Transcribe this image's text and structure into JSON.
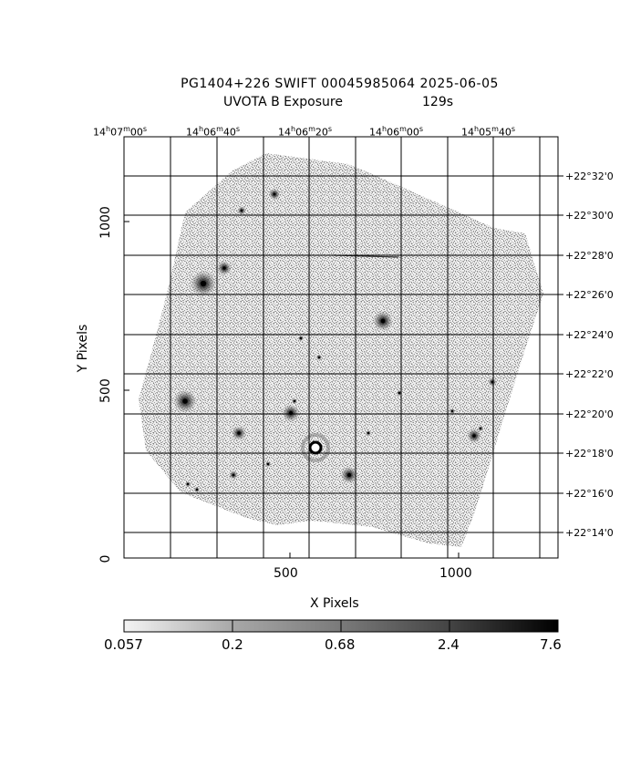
{
  "title": {
    "line1": "PG1404+226 SWIFT 00045985064 2025-06-05",
    "line2_label": "UVOTA B Exposure",
    "line2_value": "129s"
  },
  "axes": {
    "x_label": "X Pixels",
    "y_label": "Y Pixels",
    "x_ticks": [
      "500",
      "1000"
    ],
    "y_ticks": [
      "0",
      "500",
      "1000"
    ],
    "ra_labels": [
      {
        "h": "14",
        "m": "07",
        "s": "00"
      },
      {
        "h": "14",
        "m": "06",
        "s": "40"
      },
      {
        "h": "14",
        "m": "06",
        "s": "20"
      },
      {
        "h": "14",
        "m": "06",
        "s": "00"
      },
      {
        "h": "14",
        "m": "05",
        "s": "40"
      }
    ],
    "dec_labels": [
      "+22°32'0",
      "+22°30'0",
      "+22°28'0",
      "+22°26'0",
      "+22°24'0",
      "+22°22'0",
      "+22°20'0",
      "+22°18'0",
      "+22°16'0",
      "+22°14'0"
    ]
  },
  "colorbar": {
    "ticks": [
      "0.057",
      "0.2",
      "0.68",
      "2.4",
      "7.6"
    ]
  },
  "colors": {
    "field": "#9a9a9a",
    "background": "#ffffff",
    "ink": "#000000"
  }
}
